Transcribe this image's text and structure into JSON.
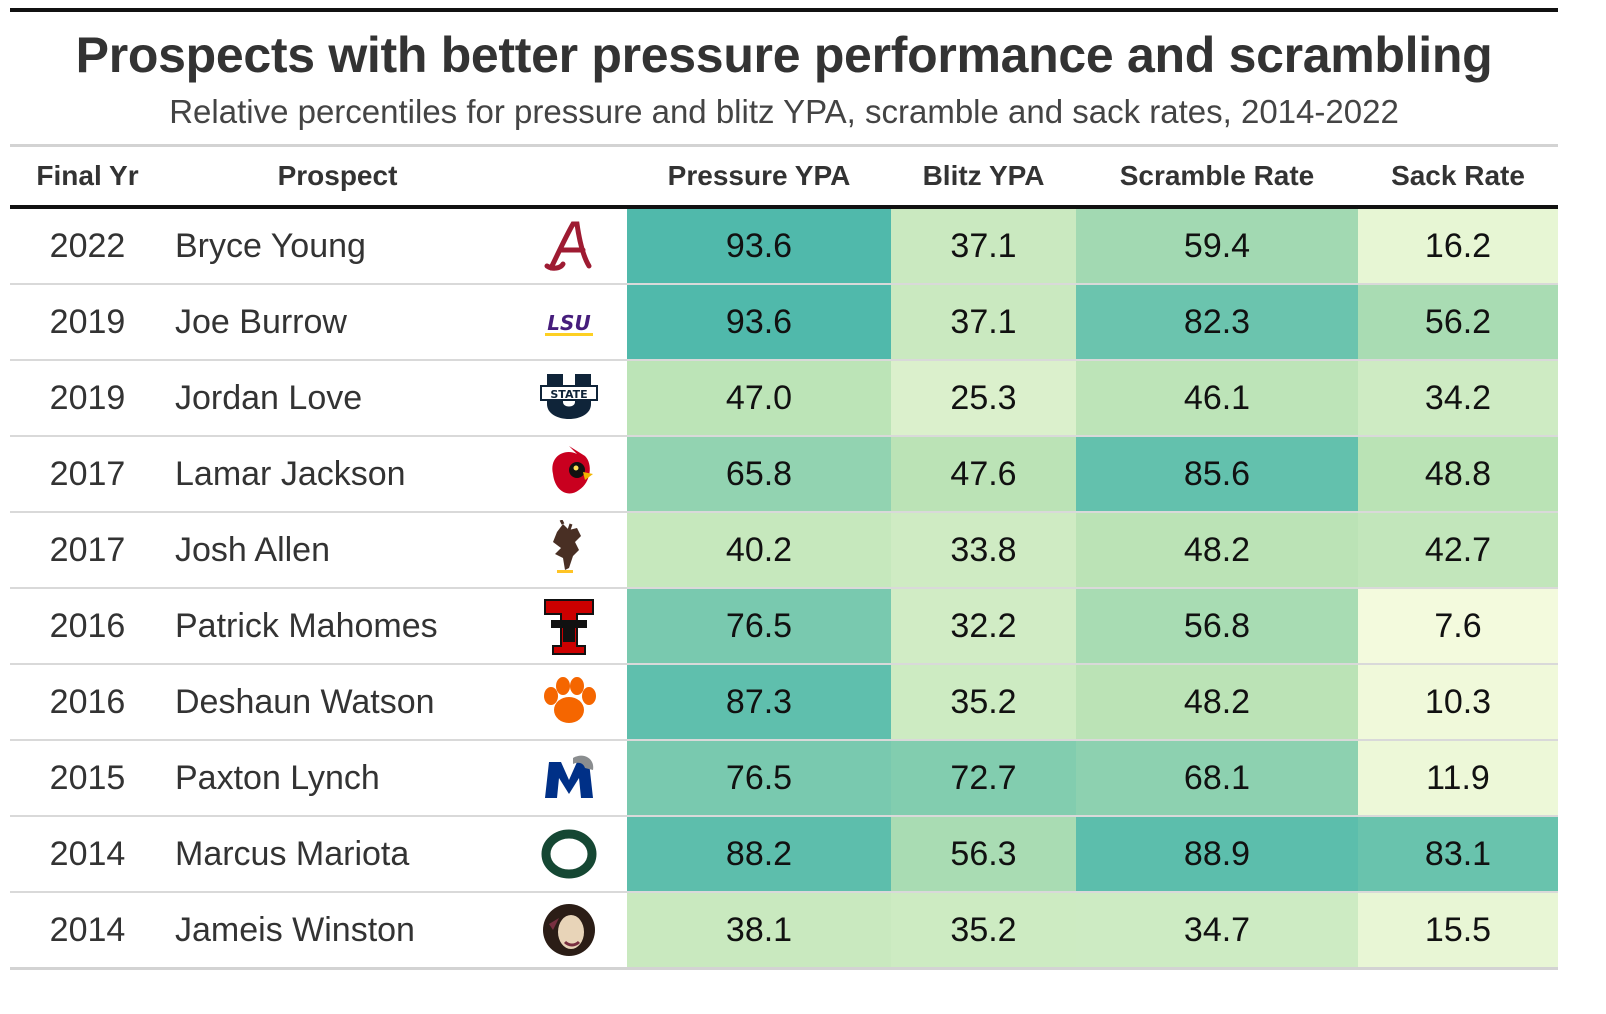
{
  "title": "Prospects with better pressure performance and scrambling",
  "subtitle": "Relative percentiles for pressure and blitz YPA, scramble and sack rates, 2014-2022",
  "columns": {
    "year": "Final Yr",
    "prospect": "Prospect",
    "pressure": "Pressure YPA",
    "blitz": "Blitz YPA",
    "scramble": "Scramble Rate",
    "sack": "Sack Rate"
  },
  "color_scale": {
    "low": "#f7fcdf",
    "mid": "#b8e2b4",
    "high": "#4db8ab"
  },
  "rows": [
    {
      "year": "2022",
      "prospect": "Bryce Young",
      "logo": "alabama-logo",
      "pressure": "93.6",
      "blitz": "37.1",
      "scramble": "59.4",
      "sack": "16.2"
    },
    {
      "year": "2019",
      "prospect": "Joe Burrow",
      "logo": "lsu-logo",
      "logo_text": "LSU",
      "pressure": "93.6",
      "blitz": "37.1",
      "scramble": "82.3",
      "sack": "56.2"
    },
    {
      "year": "2019",
      "prospect": "Jordan Love",
      "logo": "utah-state-logo",
      "logo_text": "STATE",
      "pressure": "47.0",
      "blitz": "25.3",
      "scramble": "46.1",
      "sack": "34.2"
    },
    {
      "year": "2017",
      "prospect": "Lamar Jackson",
      "logo": "louisville-logo",
      "pressure": "65.8",
      "blitz": "47.6",
      "scramble": "85.6",
      "sack": "48.8"
    },
    {
      "year": "2017",
      "prospect": "Josh Allen",
      "logo": "wyoming-logo",
      "pressure": "40.2",
      "blitz": "33.8",
      "scramble": "48.2",
      "sack": "42.7"
    },
    {
      "year": "2016",
      "prospect": "Patrick Mahomes",
      "logo": "texas-tech-logo",
      "pressure": "76.5",
      "blitz": "32.2",
      "scramble": "56.8",
      "sack": "7.6"
    },
    {
      "year": "2016",
      "prospect": "Deshaun Watson",
      "logo": "clemson-logo",
      "pressure": "87.3",
      "blitz": "35.2",
      "scramble": "48.2",
      "sack": "10.3"
    },
    {
      "year": "2015",
      "prospect": "Paxton Lynch",
      "logo": "memphis-logo",
      "pressure": "76.5",
      "blitz": "72.7",
      "scramble": "68.1",
      "sack": "11.9"
    },
    {
      "year": "2014",
      "prospect": "Marcus Mariota",
      "logo": "oregon-logo",
      "pressure": "88.2",
      "blitz": "56.3",
      "scramble": "88.9",
      "sack": "83.1"
    },
    {
      "year": "2014",
      "prospect": "Jameis Winston",
      "logo": "florida-state-logo",
      "pressure": "38.1",
      "blitz": "35.2",
      "scramble": "34.7",
      "sack": "15.5"
    }
  ],
  "chart_data": {
    "type": "table",
    "title": "Prospects with better pressure performance and scrambling",
    "subtitle": "Relative percentiles for pressure and blitz YPA, scramble and sack rates, 2014-2022",
    "columns": [
      "Final Yr",
      "Prospect",
      "Pressure YPA",
      "Blitz YPA",
      "Scramble Rate",
      "Sack Rate"
    ],
    "rows": [
      [
        "2022",
        "Bryce Young",
        93.6,
        37.1,
        59.4,
        16.2
      ],
      [
        "2019",
        "Joe Burrow",
        93.6,
        37.1,
        82.3,
        56.2
      ],
      [
        "2019",
        "Jordan Love",
        47.0,
        25.3,
        46.1,
        34.2
      ],
      [
        "2017",
        "Lamar Jackson",
        65.8,
        47.6,
        85.6,
        48.8
      ],
      [
        "2017",
        "Josh Allen",
        40.2,
        33.8,
        48.2,
        42.7
      ],
      [
        "2016",
        "Patrick Mahomes",
        76.5,
        32.2,
        56.8,
        7.6
      ],
      [
        "2016",
        "Deshaun Watson",
        87.3,
        35.2,
        48.2,
        10.3
      ],
      [
        "2015",
        "Paxton Lynch",
        76.5,
        72.7,
        68.1,
        11.9
      ],
      [
        "2014",
        "Marcus Mariota",
        88.2,
        56.3,
        88.9,
        83.1
      ],
      [
        "2014",
        "Jameis Winston",
        38.1,
        35.2,
        34.7,
        15.5
      ]
    ]
  }
}
